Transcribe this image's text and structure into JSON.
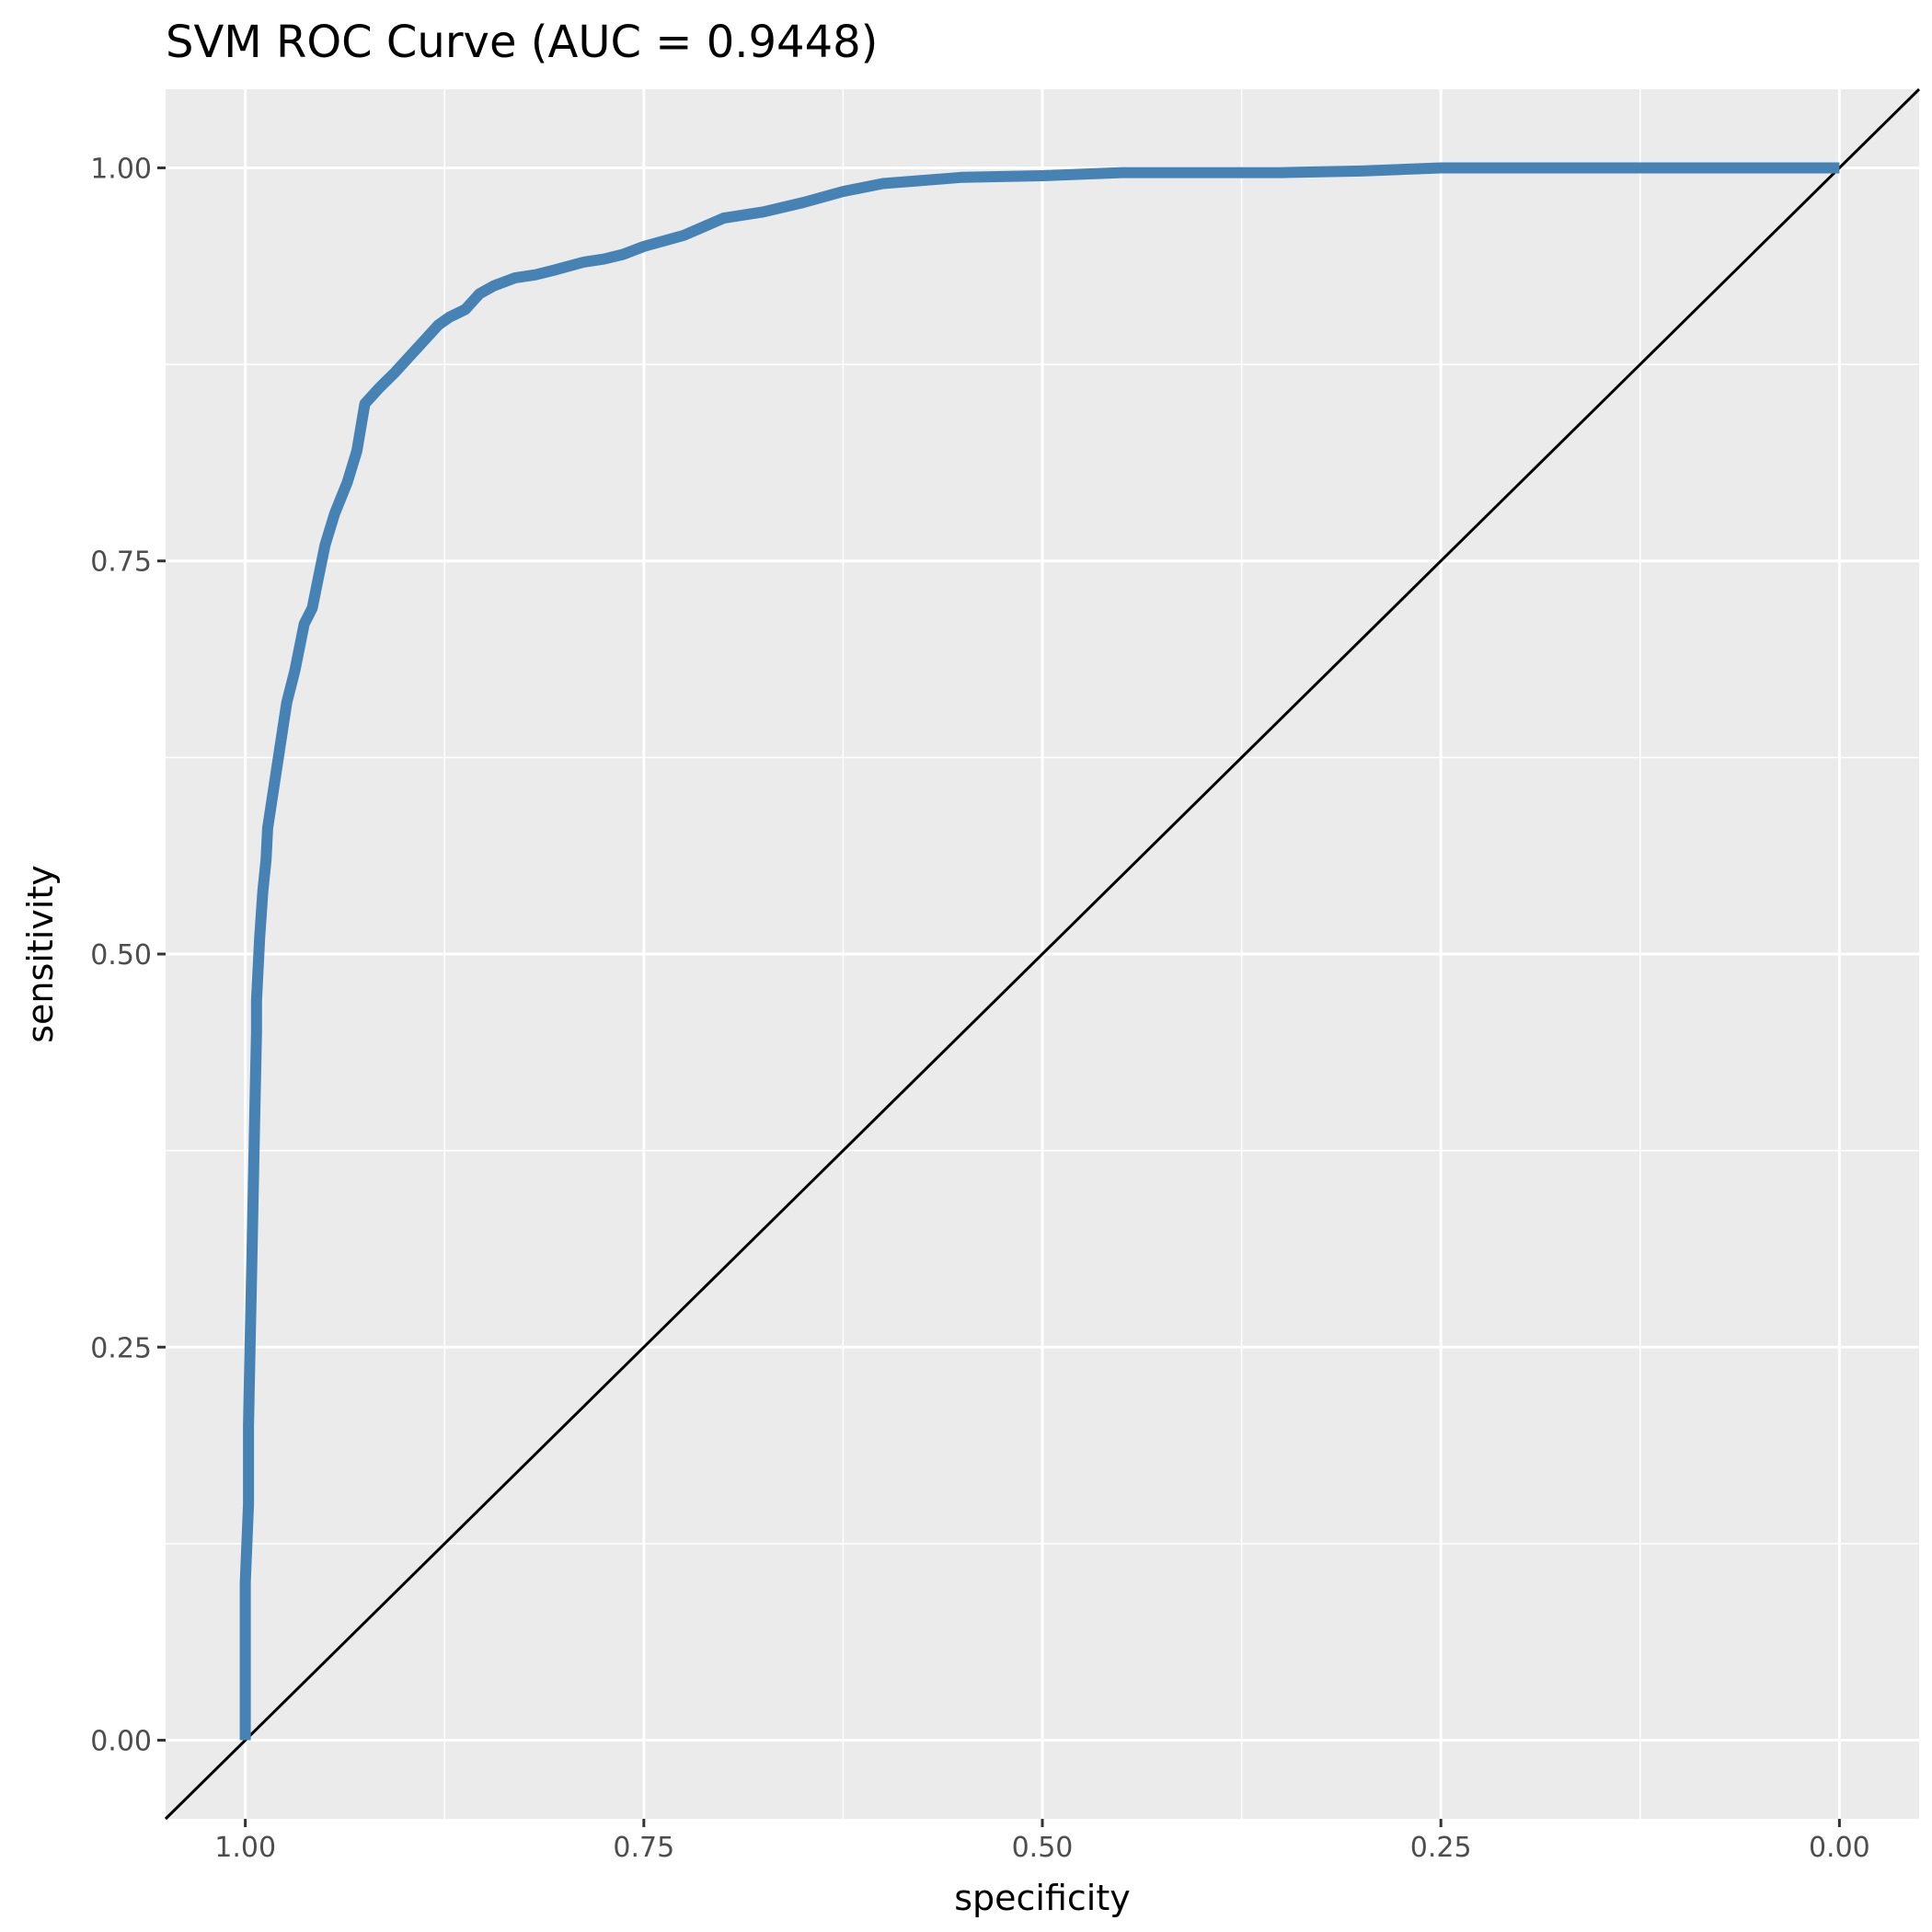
{
  "chart_data": {
    "type": "line",
    "title": "SVM ROC Curve (AUC = 0.9448)",
    "xlabel": "specificity",
    "ylabel": "sensitivity",
    "x_reversed": true,
    "xlim": [
      1.05,
      -0.05
    ],
    "ylim": [
      -0.05,
      1.05
    ],
    "xticks": [
      1.0,
      0.75,
      0.5,
      0.25,
      0.0
    ],
    "xtick_labels": [
      "1.00",
      "0.75",
      "0.50",
      "0.25",
      "0.00"
    ],
    "yticks": [
      0.0,
      0.25,
      0.5,
      0.75,
      1.0
    ],
    "ytick_labels": [
      "0.00",
      "0.25",
      "0.50",
      "0.75",
      "1.00"
    ],
    "grid": true,
    "legend": "none",
    "colors": {
      "panel_background": "#ebebeb",
      "grid": "#ffffff",
      "curve": "#4682b4",
      "reference_line": "#000000"
    },
    "series": [
      {
        "specificity": [
          1.0,
          1.0,
          0.998,
          0.998,
          0.997,
          0.996,
          0.995,
          0.994,
          0.993,
          0.993,
          0.991,
          0.989,
          0.987,
          0.986,
          0.983,
          0.98,
          0.977,
          0.974,
          0.969,
          0.963,
          0.958,
          0.954,
          0.95,
          0.947,
          0.944,
          0.94,
          0.936,
          0.93,
          0.925,
          0.916,
          0.906,
          0.897,
          0.888,
          0.879,
          0.872,
          0.862,
          0.853,
          0.844,
          0.831,
          0.818,
          0.806,
          0.788,
          0.775,
          0.763,
          0.75,
          0.725,
          0.7,
          0.675,
          0.65,
          0.625,
          0.6,
          0.575,
          0.55,
          0.5,
          0.45,
          0.4,
          0.35,
          0.3,
          0.25,
          0.2,
          0.1,
          0.0
        ],
        "sensitivity": [
          0.0,
          0.1,
          0.15,
          0.2,
          0.25,
          0.3,
          0.35,
          0.4,
          0.45,
          0.47,
          0.51,
          0.54,
          0.56,
          0.58,
          0.6,
          0.62,
          0.64,
          0.66,
          0.68,
          0.71,
          0.72,
          0.74,
          0.76,
          0.77,
          0.78,
          0.79,
          0.8,
          0.82,
          0.85,
          0.86,
          0.87,
          0.88,
          0.89,
          0.9,
          0.905,
          0.91,
          0.92,
          0.925,
          0.93,
          0.932,
          0.935,
          0.94,
          0.942,
          0.945,
          0.95,
          0.957,
          0.968,
          0.972,
          0.978,
          0.985,
          0.99,
          0.992,
          0.994,
          0.995,
          0.997,
          0.997,
          0.997,
          0.998,
          1.0,
          1.0,
          1.0,
          1.0
        ]
      }
    ],
    "reference_line": {
      "specificity": [
        1.05,
        -0.05
      ],
      "sensitivity": [
        -0.05,
        1.05
      ]
    }
  }
}
